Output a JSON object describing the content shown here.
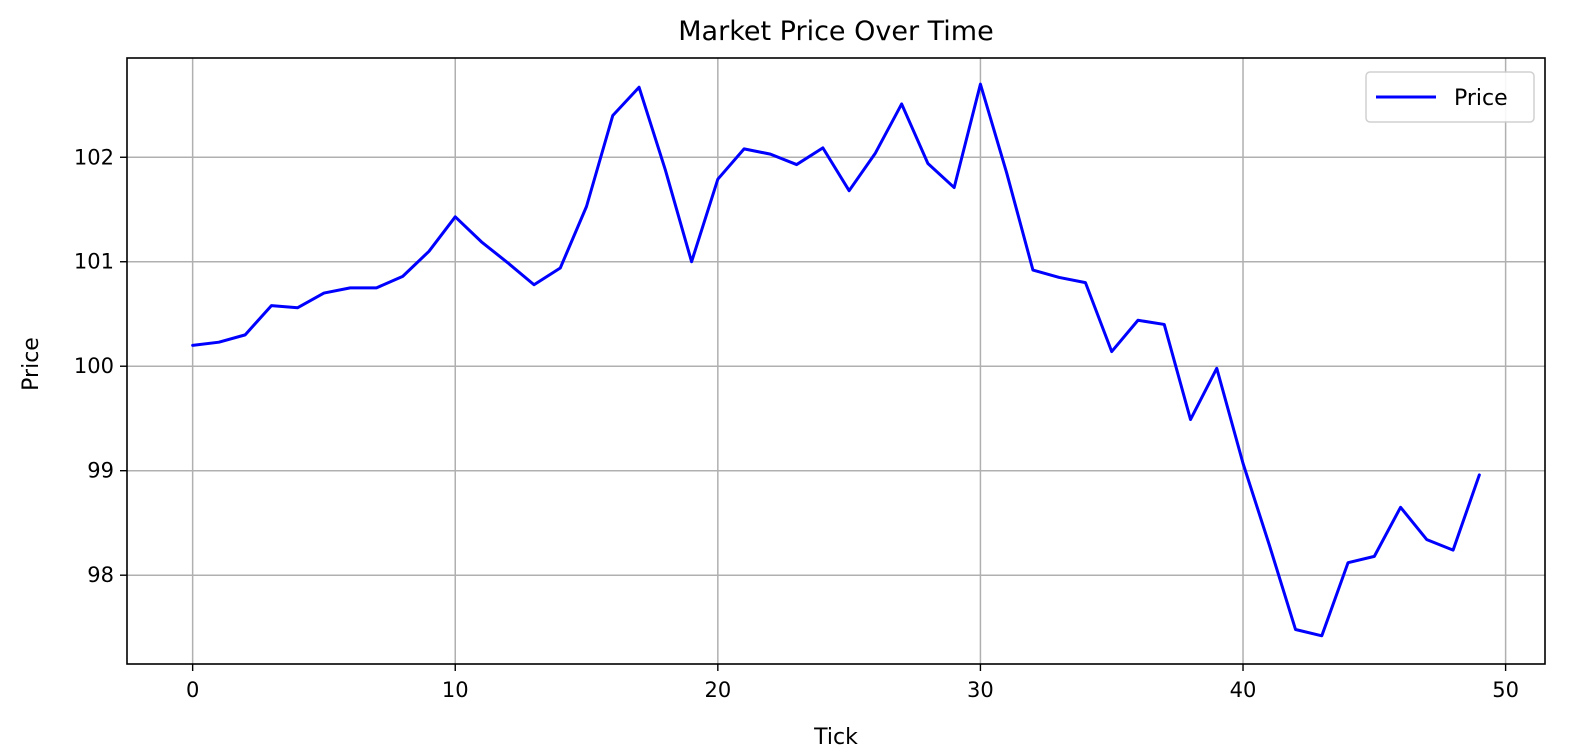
{
  "chart_data": {
    "type": "line",
    "title": "Market Price Over Time",
    "xlabel": "Tick",
    "ylabel": "Price",
    "xlim": [
      -2.5,
      51.5
    ],
    "ylim": [
      97.15,
      102.95
    ],
    "xticks": [
      0,
      10,
      20,
      30,
      40,
      50
    ],
    "yticks": [
      98,
      99,
      100,
      101,
      102
    ],
    "grid": true,
    "legend_position": "top-right",
    "series": [
      {
        "name": "Price",
        "color": "#0000ff",
        "x": [
          0,
          1,
          2,
          3,
          4,
          5,
          6,
          7,
          8,
          9,
          10,
          11,
          12,
          13,
          14,
          15,
          16,
          17,
          18,
          19,
          20,
          21,
          22,
          23,
          24,
          25,
          26,
          27,
          28,
          29,
          30,
          31,
          32,
          33,
          34,
          35,
          36,
          37,
          38,
          39,
          40,
          41,
          42,
          43,
          44,
          45,
          46,
          47,
          48,
          49
        ],
        "values": [
          100.2,
          100.23,
          100.3,
          100.58,
          100.56,
          100.7,
          100.75,
          100.75,
          100.86,
          101.1,
          101.43,
          101.19,
          100.99,
          100.78,
          100.94,
          101.53,
          102.4,
          102.67,
          101.88,
          101.0,
          101.79,
          102.08,
          102.03,
          101.93,
          102.09,
          101.68,
          102.04,
          102.51,
          101.94,
          101.71,
          102.7,
          101.85,
          100.92,
          100.85,
          100.8,
          100.14,
          100.44,
          100.4,
          99.49,
          99.98,
          99.07,
          98.29,
          97.48,
          97.42,
          98.12,
          98.18,
          98.65,
          98.34,
          98.24,
          98.96
        ]
      }
    ]
  }
}
